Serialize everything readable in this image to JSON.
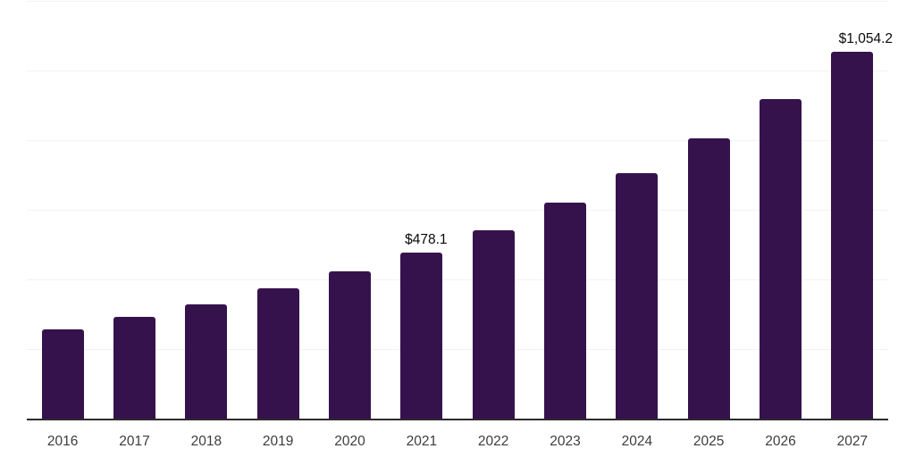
{
  "chart_data": {
    "type": "bar",
    "title": "",
    "xlabel": "",
    "ylabel": "",
    "categories": [
      "2016",
      "2017",
      "2018",
      "2019",
      "2020",
      "2021",
      "2022",
      "2023",
      "2024",
      "2025",
      "2026",
      "2027"
    ],
    "values": [
      258,
      294,
      330,
      376,
      425,
      478.1,
      542,
      622,
      706,
      806,
      919,
      1054.2
    ],
    "bar_labels": [
      "",
      "",
      "",
      "",
      "",
      "$478.1",
      "",
      "",
      "",
      "",
      "",
      "$1,054.2"
    ],
    "ylim": [
      0,
      1200
    ],
    "grid_step": 200,
    "grid": true,
    "legend": "none",
    "y_tick_labels_visible": false,
    "bar_color": "#36124D",
    "gridline_color": "#f2f2f2",
    "axis_line_color": "#2b2b2b",
    "value_label_color": "#0a0a0a",
    "tick_label_color": "#3d3d3d",
    "background_color": "#ffffff"
  }
}
